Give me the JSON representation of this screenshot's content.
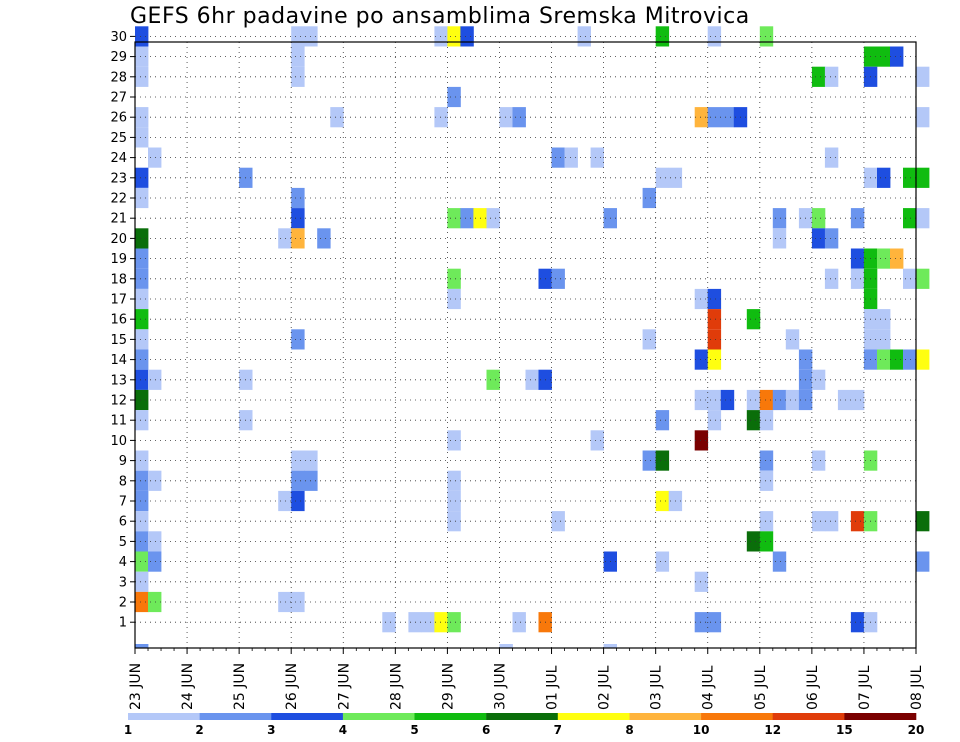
{
  "chart_data": {
    "type": "heatmap",
    "title": "GEFS 6hr padavine po ansamblima Sremska Mitrovica",
    "xlabel": "",
    "ylabel": "",
    "y_members": [
      1,
      30
    ],
    "y_tick_labels": [
      "1",
      "2",
      "3",
      "4",
      "5",
      "6",
      "7",
      "8",
      "9",
      "10",
      "11",
      "12",
      "13",
      "14",
      "15",
      "16",
      "17",
      "18",
      "19",
      "20",
      "21",
      "22",
      "23",
      "24",
      "25",
      "26",
      "27",
      "28",
      "29",
      "30"
    ],
    "x_step_hours": 6,
    "x_tick_labels": [
      "23 JUN",
      "24 JUN",
      "25 JUN",
      "26 JUN",
      "27 JUN",
      "28 JUN",
      "29 JUN",
      "30 JUN",
      "01 JUL",
      "02 JUL",
      "03 JUL",
      "04 JUL",
      "05 JUL",
      "06 JUL",
      "07 JUL",
      "08 JUL"
    ],
    "grid": true,
    "legend_position": "bottom",
    "color_scale": {
      "colors": [
        "#b4c8f8",
        "#6a94ee",
        "#1e4ee0",
        "#6eea5a",
        "#10bc10",
        "#0a6e0a",
        "#ffff10",
        "#ffb43c",
        "#f8780a",
        "#e03c0a",
        "#7a0000"
      ],
      "labels": [
        "1",
        "2",
        "3",
        "4",
        "5",
        "6",
        "7",
        "8",
        "10",
        "12",
        "15",
        "20"
      ]
    },
    "cell_class_note": "class index into color_scale.colors (0 = 1-2 mm, 10 = >20 mm)",
    "cells": [
      {
        "x": "23 JUN 00",
        "m": 30,
        "c": 2
      },
      {
        "x": "23 JUN 00",
        "m": 29,
        "c": 0
      },
      {
        "x": "23 JUN 00",
        "m": 28,
        "c": 0
      },
      {
        "x": "23 JUN 00",
        "m": 26,
        "c": 0
      },
      {
        "x": "23 JUN 00",
        "m": 25,
        "c": 0
      },
      {
        "x": "23 JUN 06",
        "m": 24,
        "c": 0
      },
      {
        "x": "23 JUN 00",
        "m": 23,
        "c": 2
      },
      {
        "x": "23 JUN 00",
        "m": 22,
        "c": 0
      },
      {
        "x": "23 JUN 00",
        "m": 20,
        "c": 5
      },
      {
        "x": "23 JUN 00",
        "m": 19,
        "c": 1
      },
      {
        "x": "23 JUN 00",
        "m": 18,
        "c": 1
      },
      {
        "x": "23 JUN 00",
        "m": 17,
        "c": 0
      },
      {
        "x": "23 JUN 00",
        "m": 16,
        "c": 4
      },
      {
        "x": "23 JUN 00",
        "m": 15,
        "c": 0
      },
      {
        "x": "23 JUN 00",
        "m": 14,
        "c": 1
      },
      {
        "x": "23 JUN 00",
        "m": 13,
        "c": 2
      },
      {
        "x": "23 JUN 06",
        "m": 13,
        "c": 0
      },
      {
        "x": "23 JUN 00",
        "m": 12,
        "c": 5
      },
      {
        "x": "23 JUN 00",
        "m": 11,
        "c": 0
      },
      {
        "x": "23 JUN 00",
        "m": 9,
        "c": 0
      },
      {
        "x": "23 JUN 00",
        "m": 8,
        "c": 1
      },
      {
        "x": "23 JUN 06",
        "m": 8,
        "c": 0
      },
      {
        "x": "23 JUN 00",
        "m": 7,
        "c": 1
      },
      {
        "x": "23 JUN 00",
        "m": 6,
        "c": 0
      },
      {
        "x": "23 JUN 00",
        "m": 5,
        "c": 1
      },
      {
        "x": "23 JUN 06",
        "m": 5,
        "c": 0
      },
      {
        "x": "23 JUN 00",
        "m": 4,
        "c": 3
      },
      {
        "x": "23 JUN 06",
        "m": 4,
        "c": 1
      },
      {
        "x": "23 JUN 00",
        "m": 3,
        "c": 0
      },
      {
        "x": "23 JUN 00",
        "m": 2,
        "c": 8
      },
      {
        "x": "23 JUN 06",
        "m": 2,
        "c": 3
      },
      {
        "x": "25 JUN 00",
        "m": 23,
        "c": 1
      },
      {
        "x": "25 JUN 00",
        "m": 13,
        "c": 0
      },
      {
        "x": "25 JUN 00",
        "m": 11,
        "c": 0
      },
      {
        "x": "26 JUN 00",
        "m": 30,
        "c": 0
      },
      {
        "x": "26 JUN 06",
        "m": 30,
        "c": 0
      },
      {
        "x": "26 JUN 00",
        "m": 29,
        "c": 0
      },
      {
        "x": "26 JUN 00",
        "m": 28,
        "c": 0
      },
      {
        "x": "26 JUN 00",
        "m": 22,
        "c": 1
      },
      {
        "x": "26 JUN 00",
        "m": 21,
        "c": 2
      },
      {
        "x": "25 JUN 18",
        "m": 20,
        "c": 0
      },
      {
        "x": "26 JUN 00",
        "m": 20,
        "c": 7
      },
      {
        "x": "26 JUN 12",
        "m": 20,
        "c": 1
      },
      {
        "x": "26 JUN 00",
        "m": 15,
        "c": 1
      },
      {
        "x": "26 JUN 00",
        "m": 9,
        "c": 0
      },
      {
        "x": "26 JUN 06",
        "m": 9,
        "c": 0
      },
      {
        "x": "26 JUN 00",
        "m": 8,
        "c": 1
      },
      {
        "x": "26 JUN 06",
        "m": 8,
        "c": 1
      },
      {
        "x": "25 JUN 18",
        "m": 7,
        "c": 0
      },
      {
        "x": "26 JUN 00",
        "m": 7,
        "c": 2
      },
      {
        "x": "25 JUN 18",
        "m": 2,
        "c": 0
      },
      {
        "x": "26 JUN 00",
        "m": 2,
        "c": 0
      },
      {
        "x": "26 JUN 18",
        "m": 26,
        "c": 0
      },
      {
        "x": "27 JUN 18",
        "m": 1,
        "c": 0
      },
      {
        "x": "28 JUN 06",
        "m": 1,
        "c": 0
      },
      {
        "x": "28 JUN 12",
        "m": 1,
        "c": 0
      },
      {
        "x": "28 JUN 18",
        "m": 1,
        "c": 6
      },
      {
        "x": "29 JUN 00",
        "m": 1,
        "c": 3
      },
      {
        "x": "28 JUN 18",
        "m": 30,
        "c": 0
      },
      {
        "x": "29 JUN 00",
        "m": 30,
        "c": 6
      },
      {
        "x": "29 JUN 06",
        "m": 30,
        "c": 2
      },
      {
        "x": "29 JUN 00",
        "m": 27,
        "c": 1
      },
      {
        "x": "28 JUN 18",
        "m": 26,
        "c": 0
      },
      {
        "x": "29 JUN 00",
        "m": 21,
        "c": 3
      },
      {
        "x": "29 JUN 06",
        "m": 21,
        "c": 1
      },
      {
        "x": "29 JUN 12",
        "m": 21,
        "c": 6
      },
      {
        "x": "29 JUN 18",
        "m": 21,
        "c": 0
      },
      {
        "x": "29 JUN 00",
        "m": 18,
        "c": 3
      },
      {
        "x": "29 JUN 00",
        "m": 17,
        "c": 0
      },
      {
        "x": "29 JUN 00",
        "m": 10,
        "c": 0
      },
      {
        "x": "29 JUN 00",
        "m": 8,
        "c": 0
      },
      {
        "x": "29 JUN 00",
        "m": 7,
        "c": 0
      },
      {
        "x": "29 JUN 00",
        "m": 6,
        "c": 0
      },
      {
        "x": "30 JUN 00",
        "m": 26,
        "c": 0
      },
      {
        "x": "30 JUN 06",
        "m": 26,
        "c": 1
      },
      {
        "x": "29 JUN 18",
        "m": 13,
        "c": 3
      },
      {
        "x": "30 JUN 12",
        "m": 13,
        "c": 0
      },
      {
        "x": "30 JUN 18",
        "m": 13,
        "c": 2
      },
      {
        "x": "30 JUN 06",
        "m": 1,
        "c": 0
      },
      {
        "x": "30 JUN 18",
        "m": 18,
        "c": 2
      },
      {
        "x": "01 JUL 00",
        "m": 18,
        "c": 1
      },
      {
        "x": "30 JUN 18",
        "m": 1,
        "c": 8
      },
      {
        "x": "01 JUL 00",
        "m": 24,
        "c": 1
      },
      {
        "x": "01 JUL 06",
        "m": 24,
        "c": 0
      },
      {
        "x": "01 JUL 18",
        "m": 24,
        "c": 0
      },
      {
        "x": "01 JUL 00",
        "m": 6,
        "c": 0
      },
      {
        "x": "01 JUL 18",
        "m": 10,
        "c": 0
      },
      {
        "x": "01 JUL 12",
        "m": 30,
        "c": 0
      },
      {
        "x": "02 JUL 00",
        "m": 21,
        "c": 1
      },
      {
        "x": "02 JUL 00",
        "m": 4,
        "c": 2
      },
      {
        "x": "02 JUL 18",
        "m": 22,
        "c": 1
      },
      {
        "x": "03 JUL 00",
        "m": 23,
        "c": 0
      },
      {
        "x": "03 JUL 06",
        "m": 23,
        "c": 0
      },
      {
        "x": "02 JUL 18",
        "m": 15,
        "c": 0
      },
      {
        "x": "03 JUL 00",
        "m": 11,
        "c": 1
      },
      {
        "x": "02 JUL 18",
        "m": 9,
        "c": 1
      },
      {
        "x": "03 JUL 00",
        "m": 9,
        "c": 5
      },
      {
        "x": "03 JUL 00",
        "m": 7,
        "c": 6
      },
      {
        "x": "03 JUL 06",
        "m": 7,
        "c": 0
      },
      {
        "x": "03 JUL 00",
        "m": 4,
        "c": 0
      },
      {
        "x": "03 JUL 00",
        "m": 30,
        "c": 4
      },
      {
        "x": "03 JUL 18",
        "m": 26,
        "c": 7
      },
      {
        "x": "04 JUL 00",
        "m": 26,
        "c": 1
      },
      {
        "x": "04 JUL 06",
        "m": 26,
        "c": 1
      },
      {
        "x": "04 JUL 12",
        "m": 26,
        "c": 2
      },
      {
        "x": "03 JUL 18",
        "m": 17,
        "c": 0
      },
      {
        "x": "04 JUL 00",
        "m": 17,
        "c": 2
      },
      {
        "x": "04 JUL 00",
        "m": 16,
        "c": 9
      },
      {
        "x": "04 JUL 00",
        "m": 15,
        "c": 9
      },
      {
        "x": "03 JUL 18",
        "m": 14,
        "c": 2
      },
      {
        "x": "04 JUL 00",
        "m": 14,
        "c": 6
      },
      {
        "x": "03 JUL 18",
        "m": 12,
        "c": 0
      },
      {
        "x": "04 JUL 00",
        "m": 12,
        "c": 0
      },
      {
        "x": "04 JUL 06",
        "m": 12,
        "c": 2
      },
      {
        "x": "04 JUL 00",
        "m": 11,
        "c": 0
      },
      {
        "x": "03 JUL 18",
        "m": 10,
        "c": 10
      },
      {
        "x": "03 JUL 18",
        "m": 3,
        "c": 0
      },
      {
        "x": "03 JUL 18",
        "m": 1,
        "c": 1
      },
      {
        "x": "04 JUL 00",
        "m": 1,
        "c": 1
      },
      {
        "x": "04 JUL 00",
        "m": 30,
        "c": 0
      },
      {
        "x": "04 JUL 18",
        "m": 16,
        "c": 4
      },
      {
        "x": "04 JUL 18",
        "m": 12,
        "c": 0
      },
      {
        "x": "05 JUL 00",
        "m": 12,
        "c": 8
      },
      {
        "x": "05 JUL 06",
        "m": 12,
        "c": 1
      },
      {
        "x": "04 JUL 18",
        "m": 11,
        "c": 5
      },
      {
        "x": "05 JUL 00",
        "m": 11,
        "c": 0
      },
      {
        "x": "05 JUL 00",
        "m": 9,
        "c": 1
      },
      {
        "x": "05 JUL 00",
        "m": 8,
        "c": 0
      },
      {
        "x": "05 JUL 00",
        "m": 6,
        "c": 0
      },
      {
        "x": "04 JUL 18",
        "m": 5,
        "c": 5
      },
      {
        "x": "05 JUL 00",
        "m": 5,
        "c": 4
      },
      {
        "x": "05 JUL 06",
        "m": 4,
        "c": 1
      },
      {
        "x": "05 JUL 06",
        "m": 21,
        "c": 1
      },
      {
        "x": "05 JUL 06",
        "m": 20,
        "c": 0
      },
      {
        "x": "05 JUL 12",
        "m": 15,
        "c": 0
      },
      {
        "x": "05 JUL 00",
        "m": 30,
        "c": 3
      },
      {
        "x": "05 JUL 18",
        "m": 14,
        "c": 1
      },
      {
        "x": "05 JUL 18",
        "m": 13,
        "c": 1
      },
      {
        "x": "06 JUL 00",
        "m": 13,
        "c": 0
      },
      {
        "x": "05 JUL 12",
        "m": 12,
        "c": 0
      },
      {
        "x": "05 JUL 18",
        "m": 12,
        "c": 1
      },
      {
        "x": "06 JUL 00",
        "m": 9,
        "c": 0
      },
      {
        "x": "06 JUL 00",
        "m": 6,
        "c": 0
      },
      {
        "x": "06 JUL 06",
        "m": 6,
        "c": 0
      },
      {
        "x": "05 JUL 18",
        "m": 21,
        "c": 0
      },
      {
        "x": "06 JUL 00",
        "m": 21,
        "c": 3
      },
      {
        "x": "06 JUL 00",
        "m": 20,
        "c": 2
      },
      {
        "x": "06 JUL 06",
        "m": 20,
        "c": 1
      },
      {
        "x": "06 JUL 06",
        "m": 18,
        "c": 0
      },
      {
        "x": "06 JUL 06",
        "m": 24,
        "c": 0
      },
      {
        "x": "06 JUL 00",
        "m": 28,
        "c": 4
      },
      {
        "x": "06 JUL 06",
        "m": 28,
        "c": 0
      },
      {
        "x": "06 JUL 12",
        "m": 12,
        "c": 0
      },
      {
        "x": "06 JUL 18",
        "m": 12,
        "c": 0
      },
      {
        "x": "06 JUL 18",
        "m": 6,
        "c": 9
      },
      {
        "x": "07 JUL 00",
        "m": 6,
        "c": 3
      },
      {
        "x": "07 JUL 00",
        "m": 9,
        "c": 3
      },
      {
        "x": "06 JUL 18",
        "m": 1,
        "c": 2
      },
      {
        "x": "07 JUL 00",
        "m": 1,
        "c": 0
      },
      {
        "x": "06 JUL 18",
        "m": 21,
        "c": 1
      },
      {
        "x": "06 JUL 18",
        "m": 19,
        "c": 2
      },
      {
        "x": "07 JUL 00",
        "m": 19,
        "c": 4
      },
      {
        "x": "07 JUL 06",
        "m": 19,
        "c": 3
      },
      {
        "x": "07 JUL 12",
        "m": 19,
        "c": 7
      },
      {
        "x": "06 JUL 18",
        "m": 18,
        "c": 0
      },
      {
        "x": "07 JUL 00",
        "m": 18,
        "c": 4
      },
      {
        "x": "07 JUL 00",
        "m": 17,
        "c": 4
      },
      {
        "x": "07 JUL 00",
        "m": 16,
        "c": 0
      },
      {
        "x": "07 JUL 06",
        "m": 16,
        "c": 0
      },
      {
        "x": "07 JUL 00",
        "m": 15,
        "c": 0
      },
      {
        "x": "07 JUL 06",
        "m": 15,
        "c": 0
      },
      {
        "x": "07 JUL 00",
        "m": 14,
        "c": 1
      },
      {
        "x": "07 JUL 06",
        "m": 14,
        "c": 3
      },
      {
        "x": "07 JUL 12",
        "m": 14,
        "c": 4
      },
      {
        "x": "07 JUL 18",
        "m": 14,
        "c": 1
      },
      {
        "x": "08 JUL 00",
        "m": 14,
        "c": 6
      },
      {
        "x": "07 JUL 00",
        "m": 23,
        "c": 0
      },
      {
        "x": "07 JUL 06",
        "m": 23,
        "c": 2
      },
      {
        "x": "07 JUL 18",
        "m": 23,
        "c": 4
      },
      {
        "x": "08 JUL 00",
        "m": 23,
        "c": 4
      },
      {
        "x": "07 JUL 18",
        "m": 21,
        "c": 4
      },
      {
        "x": "08 JUL 00",
        "m": 21,
        "c": 0
      },
      {
        "x": "07 JUL 18",
        "m": 18,
        "c": 0
      },
      {
        "x": "08 JUL 00",
        "m": 18,
        "c": 3
      },
      {
        "x": "07 JUL 00",
        "m": 29,
        "c": 4
      },
      {
        "x": "07 JUL 06",
        "m": 29,
        "c": 4
      },
      {
        "x": "07 JUL 12",
        "m": 29,
        "c": 2
      },
      {
        "x": "07 JUL 00",
        "m": 28,
        "c": 2
      },
      {
        "x": "08 JUL 00",
        "m": 28,
        "c": 0
      },
      {
        "x": "08 JUL 00",
        "m": 26,
        "c": 0
      },
      {
        "x": "08 JUL 00",
        "m": 6,
        "c": 5
      },
      {
        "x": "08 JUL 00",
        "m": 4,
        "c": 1
      }
    ],
    "edge_marks": [
      {
        "x": "23 JUN 00",
        "c": 1
      },
      {
        "x": "30 JUN 00",
        "c": 0
      },
      {
        "x": "02 JUL 00",
        "c": 0
      }
    ]
  }
}
